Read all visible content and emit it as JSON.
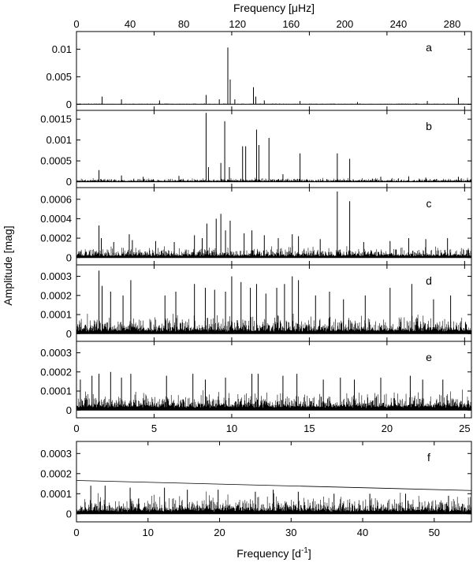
{
  "chart_data": {
    "type": "line",
    "top_axis": {
      "label_prefix": "Frequency [",
      "label_unit": "μHz",
      "label_suffix": "]",
      "ticks": [
        0,
        40,
        80,
        120,
        160,
        200,
        240,
        280
      ],
      "ticks_text": [
        "0",
        "40",
        "80",
        "120",
        "160",
        "200",
        "240",
        "280"
      ],
      "xlim_uHz": [
        0,
        294.4
      ]
    },
    "ylabel": "Amplitude [mag]",
    "xlabel_prefix": "Frequency [d",
    "xlabel_sup": "-1",
    "xlabel_suffix": "]",
    "grid": false,
    "panels": [
      {
        "tag": "a",
        "xlim": [
          0,
          25.44
        ],
        "ylim": [
          -0.0011,
          0.0132
        ],
        "yticks": [
          0,
          0.005,
          0.01
        ],
        "yticks_text": [
          "0",
          "0.005",
          "0.01"
        ],
        "noise": 6e-05,
        "peaks": [
          [
            1.65,
            0.0014
          ],
          [
            2.9,
            0.0009
          ],
          [
            5.35,
            0.0007
          ],
          [
            8.35,
            0.0017
          ],
          [
            9.2,
            0.0009
          ],
          [
            9.75,
            0.0103
          ],
          [
            9.9,
            0.0045
          ],
          [
            10.2,
            0.0009
          ],
          [
            11.4,
            0.0031
          ],
          [
            11.55,
            0.0014
          ],
          [
            12.1,
            0.0007
          ],
          [
            14.4,
            0.0006
          ],
          [
            18.1,
            0.0004
          ],
          [
            22.6,
            0.0006
          ],
          [
            24.6,
            0.0012
          ]
        ]
      },
      {
        "tag": "b",
        "xlim": [
          0,
          25.44
        ],
        "ylim": [
          -0.00014,
          0.00171
        ],
        "yticks": [
          0,
          0.0005,
          0.001,
          0.0015
        ],
        "yticks_text": [
          "0",
          "0.0005",
          "0.001",
          "0.0015"
        ],
        "noise": 3.5e-05,
        "peaks": [
          [
            1.45,
            0.00028
          ],
          [
            2.9,
            0.00015
          ],
          [
            4.3,
            0.00012
          ],
          [
            6.6,
            0.00014
          ],
          [
            8.35,
            0.00165
          ],
          [
            8.5,
            0.00035
          ],
          [
            9.3,
            0.00045
          ],
          [
            9.55,
            0.00145
          ],
          [
            9.85,
            0.00035
          ],
          [
            10.7,
            0.00085
          ],
          [
            10.9,
            0.00085
          ],
          [
            11.6,
            0.00125
          ],
          [
            11.75,
            0.00088
          ],
          [
            12.4,
            0.00105
          ],
          [
            13.3,
            0.00018
          ],
          [
            14.4,
            0.00068
          ],
          [
            16.8,
            0.00068
          ],
          [
            17.6,
            0.00055
          ],
          [
            19.6,
            0.00012
          ],
          [
            21.4,
            0.00013
          ],
          [
            22.5,
            0.0001
          ],
          [
            24.6,
            0.00012
          ]
        ]
      },
      {
        "tag": "c",
        "xlim": [
          0,
          25.44
        ],
        "ylim": [
          -7.5e-05,
          0.00072
        ],
        "yticks": [
          0,
          0.0002,
          0.0004,
          0.0006
        ],
        "yticks_text": [
          "0",
          "0.0002",
          "0.0004",
          "0.0006"
        ],
        "noise": 4.5e-05,
        "peaks": [
          [
            1.45,
            0.00033
          ],
          [
            1.6,
            0.0002
          ],
          [
            2.4,
            0.00016
          ],
          [
            3.4,
            0.00024
          ],
          [
            3.6,
            0.00018
          ],
          [
            5.1,
            0.00017
          ],
          [
            6.3,
            0.00016
          ],
          [
            7.6,
            0.00023
          ],
          [
            8.1,
            0.0002
          ],
          [
            8.4,
            0.00035
          ],
          [
            9.0,
            0.0004
          ],
          [
            9.3,
            0.00045
          ],
          [
            9.6,
            0.00028
          ],
          [
            9.9,
            0.00038
          ],
          [
            10.8,
            0.00025
          ],
          [
            11.3,
            0.00028
          ],
          [
            12.1,
            0.00023
          ],
          [
            13.0,
            0.0002
          ],
          [
            13.9,
            0.00024
          ],
          [
            14.3,
            0.00022
          ],
          [
            15.7,
            0.00019
          ],
          [
            16.8,
            0.00068
          ],
          [
            17.6,
            0.00058
          ],
          [
            18.5,
            0.00016
          ],
          [
            20.2,
            0.00017
          ],
          [
            21.4,
            0.0002
          ],
          [
            22.5,
            0.00019
          ],
          [
            23.9,
            0.0002
          ]
        ]
      },
      {
        "tag": "d",
        "xlim": [
          0,
          25.44
        ],
        "ylim": [
          -4e-05,
          0.00036
        ],
        "yticks": [
          0,
          0.0001,
          0.0002,
          0.0003
        ],
        "yticks_text": [
          "0",
          "0.0001",
          "0.0002",
          "0.0003"
        ],
        "noise": 3.8e-05,
        "peaks": [
          [
            1.45,
            0.00033
          ],
          [
            1.65,
            0.00025
          ],
          [
            2.2,
            0.00022
          ],
          [
            3.0,
            0.0002
          ],
          [
            3.5,
            0.00028
          ],
          [
            5.7,
            0.0002
          ],
          [
            6.4,
            0.00022
          ],
          [
            7.6,
            0.00026
          ],
          [
            8.3,
            0.00024
          ],
          [
            8.9,
            0.00023
          ],
          [
            9.6,
            0.00022
          ],
          [
            10.0,
            0.0003
          ],
          [
            10.6,
            0.00027
          ],
          [
            11.2,
            0.00024
          ],
          [
            11.6,
            0.00026
          ],
          [
            12.2,
            0.00021
          ],
          [
            12.9,
            0.00024
          ],
          [
            13.4,
            0.00026
          ],
          [
            13.9,
            0.0003
          ],
          [
            14.3,
            0.00028
          ],
          [
            15.4,
            0.0002
          ],
          [
            16.3,
            0.00022
          ],
          [
            17.2,
            0.00018
          ],
          [
            18.6,
            0.0002
          ],
          [
            20.2,
            0.00024
          ],
          [
            21.6,
            0.00026
          ],
          [
            23.0,
            0.00018
          ],
          [
            24.1,
            0.0002
          ]
        ]
      },
      {
        "tag": "e",
        "xlim": [
          0,
          25.44
        ],
        "ylim": [
          -4e-05,
          0.00036
        ],
        "yticks": [
          0,
          0.0001,
          0.0002,
          0.0003
        ],
        "yticks_text": [
          "0",
          "0.0001",
          "0.0002",
          "0.0003"
        ],
        "noise": 4e-05,
        "peaks": [
          [
            0.25,
            0.00016
          ],
          [
            1.0,
            0.00018
          ],
          [
            1.45,
            0.00019
          ],
          [
            2.2,
            0.0002
          ],
          [
            2.9,
            0.00017
          ],
          [
            3.5,
            0.00019
          ],
          [
            5.8,
            0.00018
          ],
          [
            7.5,
            0.00019
          ],
          [
            8.3,
            0.00016
          ],
          [
            9.6,
            0.00017
          ],
          [
            11.3,
            0.00019
          ],
          [
            11.7,
            0.00019
          ],
          [
            13.3,
            0.00018
          ],
          [
            14.2,
            0.00019
          ],
          [
            15.9,
            0.00016
          ],
          [
            17.0,
            0.00017
          ],
          [
            17.9,
            0.00016
          ],
          [
            19.6,
            0.00017
          ],
          [
            21.5,
            0.00018
          ],
          [
            22.3,
            0.00016
          ],
          [
            23.6,
            0.00016
          ]
        ]
      },
      {
        "tag": "f",
        "xlim": [
          0,
          55.2
        ],
        "ylim": [
          -4e-05,
          0.00036
        ],
        "yticks": [
          0,
          0.0001,
          0.0002,
          0.0003
        ],
        "yticks_text": [
          "0",
          "0.0001",
          "0.0002",
          "0.0003"
        ],
        "noise": 3.6e-05,
        "peaks": [
          [
            2.0,
            0.00014
          ],
          [
            4.0,
            0.00014
          ],
          [
            7.5,
            0.00013
          ],
          [
            12.3,
            0.00013
          ],
          [
            15.5,
            0.00012
          ],
          [
            19.8,
            0.00012
          ],
          [
            25.0,
            0.00011
          ],
          [
            27.5,
            0.00012
          ],
          [
            31.0,
            0.00011
          ],
          [
            36.0,
            0.0001
          ],
          [
            41.0,
            0.0001
          ],
          [
            46.0,
            0.0001
          ],
          [
            52.0,
            9e-05
          ]
        ],
        "threshold": {
          "x": [
            0,
            55.2
          ],
          "y": [
            0.000166,
            0.000116
          ]
        }
      }
    ],
    "bottom_axis_top": {
      "ticks": [
        0,
        5,
        10,
        15,
        20,
        25
      ],
      "ticks_text": [
        "0",
        "5",
        "10",
        "15",
        "20",
        "25"
      ]
    },
    "bottom_axis_f": {
      "ticks": [
        0,
        10,
        20,
        30,
        40,
        50
      ],
      "ticks_text": [
        "0",
        "10",
        "20",
        "30",
        "40",
        "50"
      ]
    }
  }
}
